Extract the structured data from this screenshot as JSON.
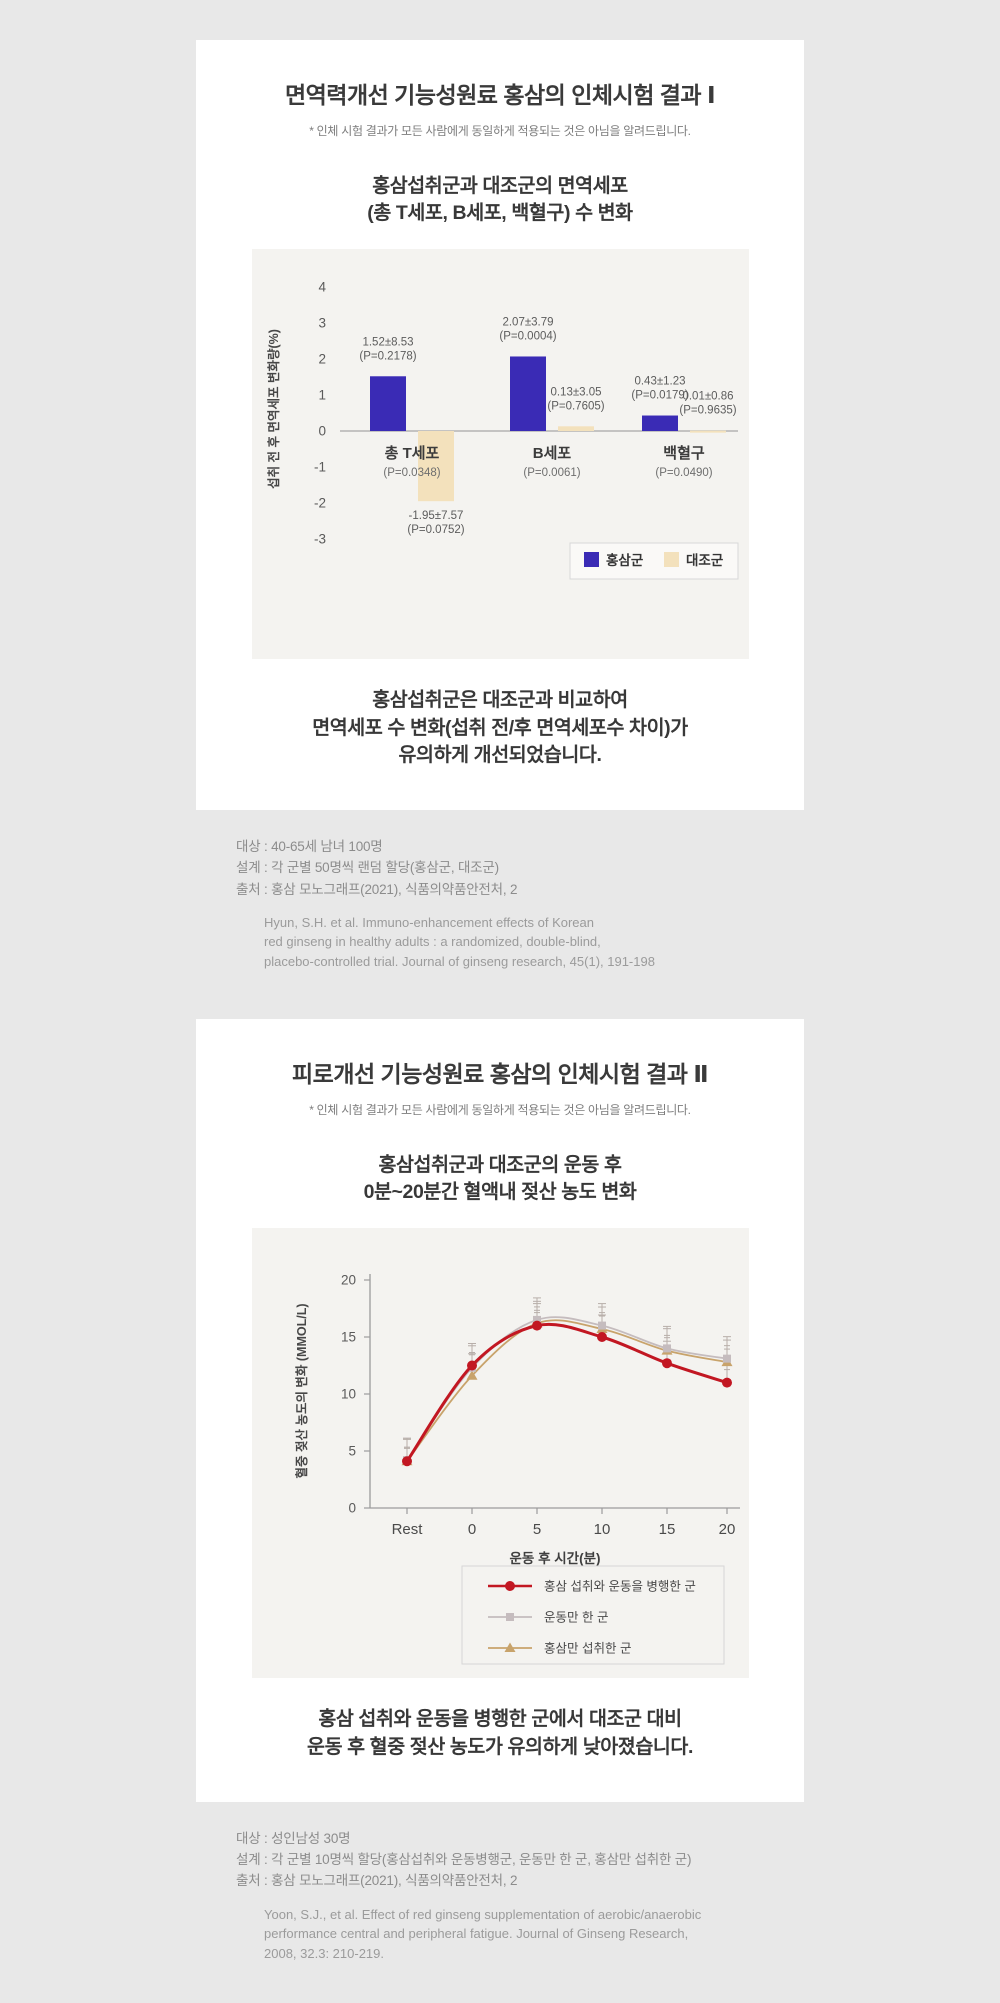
{
  "page": {
    "background": "#e8e8e8",
    "card_background": "#ffffff",
    "chart_background": "#f4f3f0"
  },
  "colors": {
    "ginseng_blue": "#3a2bb5",
    "control_beige": "#f3e1bc",
    "line_red": "#c21722",
    "line_gray": "#c5bcbe",
    "line_tan": "#c8a36b",
    "axis_gray": "#9c9c9c"
  },
  "section1": {
    "title": "면역력개선 기능성원료 홍삼의 인체시험 결과 Ⅰ",
    "disclaimer": "* 인체 시험 결과가 모든 사람에게 동일하게 적용되는 것은 아님을 알려드립니다.",
    "chart_title_lines": [
      "홍삼섭취군과 대조군의 면역세포",
      "(총 T세포, B세포, 백혈구) 수 변화"
    ],
    "conclusion_lines": [
      "홍삼섭취군은 대조군과 비교하여",
      "면역세포 수 변화(섭취 전/후 면역세포수 차이)가",
      "유의하게 개선되었습니다."
    ],
    "meta": {
      "target": "대상 : 40-65세 남녀 100명",
      "design": "설계 : 각 군별 50명씩 랜덤 할당(홍삼군, 대조군)",
      "source": "출처 : 홍삼 모노그래프(2021), 식품의약품안전처, 2",
      "citation_lines": [
        "Hyun, S.H. et al. Immuno-enhancement effects of Korean",
        "red ginseng in healthy adults :  a randomized, double-blind,",
        "placebo-controlled trial. Journal of ginseng research, 45(1), 191-198"
      ]
    }
  },
  "section2": {
    "title": "피로개선 기능성원료 홍삼의 인체시험 결과 Ⅱ",
    "disclaimer": "* 인체 시험 결과가 모든 사람에게 동일하게 적용되는 것은 아님을 알려드립니다.",
    "chart_title_lines": [
      "홍삼섭취군과 대조군의 운동 후",
      "0분~20분간 혈액내 젖산 농도 변화"
    ],
    "conclusion_lines": [
      "홍삼 섭취와 운동을 병행한 군에서 대조군 대비",
      "운동 후 혈중 젖산 농도가 유의하게 낮아졌습니다."
    ],
    "meta": {
      "target": "대상 : 성인남성 30명",
      "design": "설계 : 각 군별 10명씩 할당(홍삼섭취와 운동병행군, 운동만 한 군, 홍삼만 섭취한 군)",
      "source": "출처 : 홍삼 모노그래프(2021), 식품의약품안전처, 2",
      "citation_lines": [
        "Yoon, S.J., et al. Effect of red ginseng supplementation of aerobic/anaerobic",
        "performance central and peripheral fatigue. Journal of Ginseng Research,",
        "2008, 32.3: 210-219."
      ]
    }
  },
  "chart_data": [
    {
      "type": "bar",
      "title": "홍삼섭취군과 대조군의 면역세포 (총 T세포, B세포, 백혈구) 수 변화",
      "categories": [
        "총 T세포",
        "B세포",
        "백혈구"
      ],
      "category_sublabels": [
        "(P=0.0348)",
        "(P=0.0061)",
        "(P=0.0490)"
      ],
      "series": [
        {
          "name": "홍삼군",
          "color": "#3a2bb5",
          "values": [
            1.52,
            2.07,
            0.43
          ],
          "labels": [
            [
              "1.52±8.53",
              "(P=0.2178)"
            ],
            [
              "2.07±3.79",
              "(P=0.0004)"
            ],
            [
              "0.43±1.23",
              "(P=0.0179)"
            ]
          ]
        },
        {
          "name": "대조군",
          "color": "#f3e1bc",
          "values": [
            -1.95,
            0.13,
            0.01
          ],
          "labels": [
            [
              "-1.95±7.57",
              "(P=0.0752)"
            ],
            [
              "0.13±3.05",
              "(P=0.7605)"
            ],
            [
              "0.01±0.86",
              "(P=0.9635)"
            ]
          ]
        }
      ],
      "ylabel": "섭취 전 후 면역세포 변화량(%)",
      "ylim": [
        -3,
        4
      ],
      "yticks": [
        4,
        3,
        2,
        1,
        0,
        -1,
        -2,
        -3
      ],
      "grid": false,
      "legend_position": "bottom-right"
    },
    {
      "type": "line",
      "title": "홍삼섭취군과 대조군의 운동 후 0분~20분간 혈액내 젖산 농도 변화",
      "x_categories": [
        "Rest",
        "0",
        "5",
        "10",
        "15",
        "20"
      ],
      "series": [
        {
          "name": "홍삼 섭취와 운동을 병행한 군",
          "color": "#c21722",
          "marker": "circle",
          "values": [
            4.1,
            12.5,
            16.0,
            15.0,
            12.7,
            11.0
          ]
        },
        {
          "name": "운동만 한 군",
          "color": "#c5bcbe",
          "marker": "square",
          "values": [
            4.2,
            12.3,
            16.5,
            16.0,
            14.0,
            13.1
          ]
        },
        {
          "name": "홍삼만 섭취한 군",
          "color": "#c8a36b",
          "marker": "triangle",
          "values": [
            4.1,
            11.6,
            16.2,
            15.7,
            13.8,
            12.8
          ]
        }
      ],
      "xlabel": "운동 후 시간(분)",
      "ylabel": "혈중 젖산 농도의 변화 (MMOL/L)",
      "ylim": [
        0,
        20
      ],
      "yticks": [
        0,
        5,
        10,
        15,
        20
      ],
      "error_bars": true,
      "grid": false,
      "legend_position": "bottom-center"
    }
  ]
}
